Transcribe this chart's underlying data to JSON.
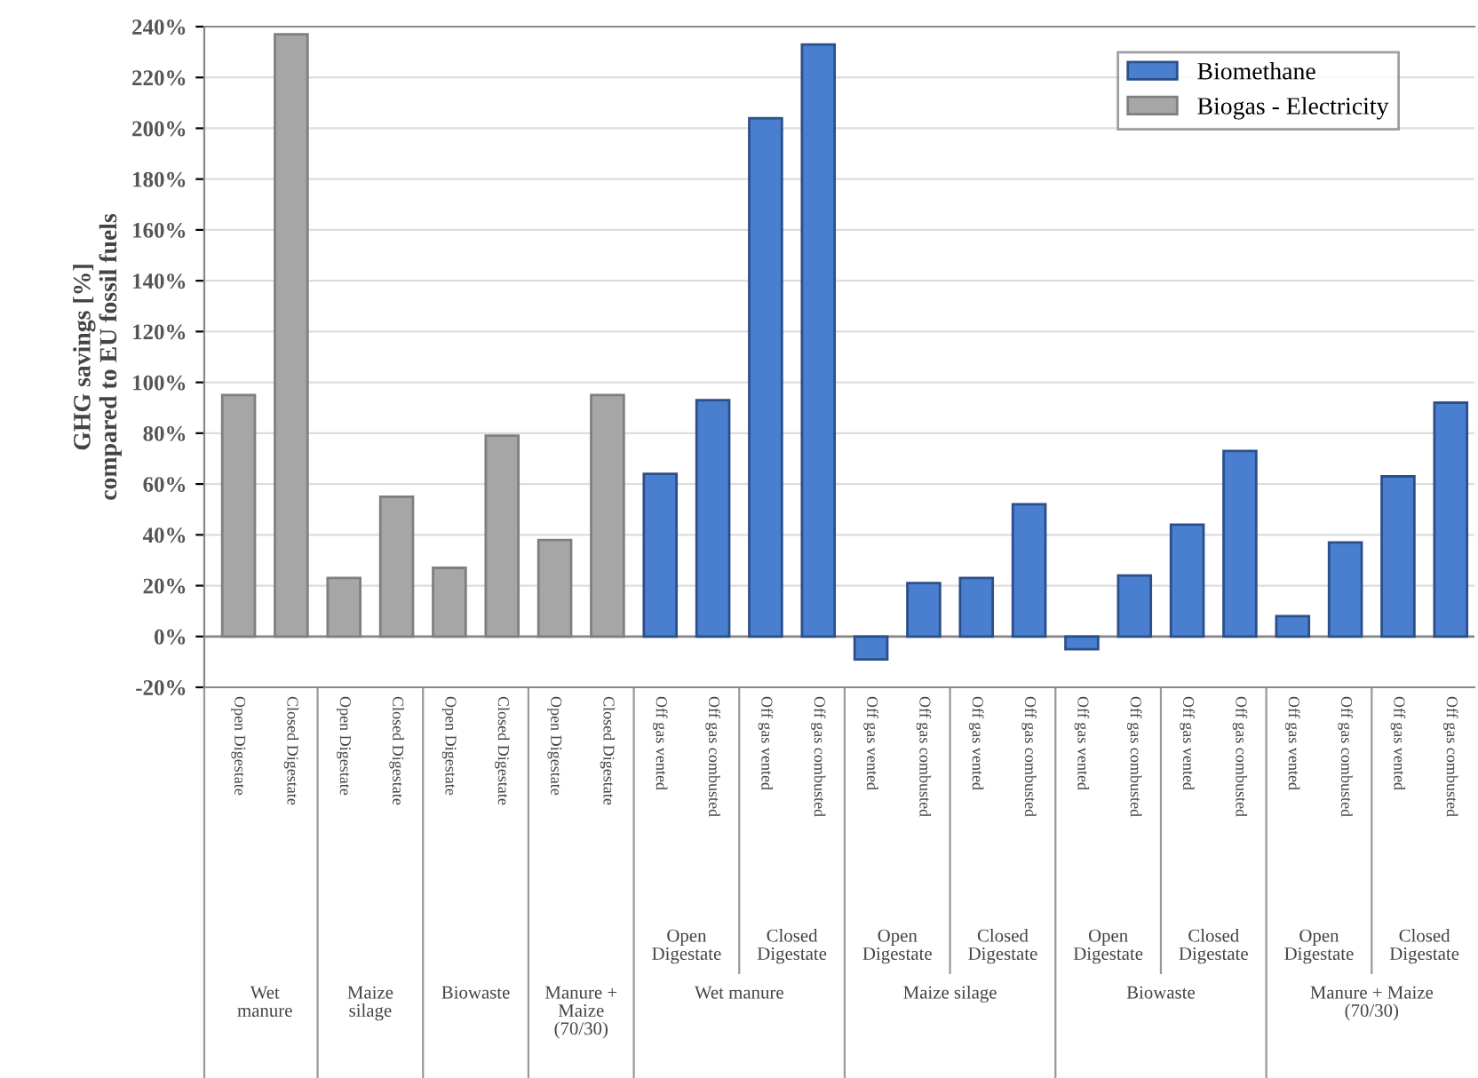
{
  "chart_data": {
    "type": "bar",
    "ylabel": "GHG savings [%]\ncompared to EU fossil fuels",
    "categories": [
      "Open Digestate",
      "Closed Digestate",
      "Open Digestate",
      "Closed Digestate",
      "Open Digestate",
      "Closed Digestate",
      "Open Digestate",
      "Closed Digestate",
      "Off gas vented",
      "Off gas combusted",
      "Off gas vented",
      "Off gas combusted",
      "Off gas vented",
      "Off gas combusted",
      "Off gas vented",
      "Off gas combusted",
      "Off gas vented",
      "Off gas combusted",
      "Off gas vented",
      "Off gas combusted",
      "Off gas vented",
      "Off gas combusted",
      "Off gas vented",
      "Off gas combusted"
    ],
    "series": [
      {
        "name": "Biomethane",
        "color": "#4a7fcf",
        "values": [
          null,
          null,
          null,
          null,
          null,
          null,
          null,
          null,
          64,
          93,
          204,
          233,
          -9,
          21,
          23,
          52,
          -5,
          24,
          44,
          73,
          8,
          37,
          63,
          92
        ]
      },
      {
        "name": "Biogas - Electricity",
        "color": "#a6a6a6",
        "values": [
          95,
          237,
          23,
          55,
          27,
          79,
          38,
          95,
          null,
          null,
          null,
          null,
          null,
          null,
          null,
          null,
          null,
          null,
          null,
          null,
          null,
          null,
          null,
          null
        ]
      }
    ],
    "ylim": [
      -20,
      240
    ],
    "yticks": [
      {
        "value": -20,
        "label": "-20%"
      },
      {
        "value": 0,
        "label": "0%"
      },
      {
        "value": 20,
        "label": "20%"
      },
      {
        "value": 40,
        "label": "40%"
      },
      {
        "value": 60,
        "label": "60%"
      },
      {
        "value": 80,
        "label": "80%"
      },
      {
        "value": 100,
        "label": "100%"
      },
      {
        "value": 120,
        "label": "120%"
      },
      {
        "value": 140,
        "label": "140%"
      },
      {
        "value": 160,
        "label": "160%"
      },
      {
        "value": 180,
        "label": "180%"
      },
      {
        "value": 200,
        "label": "200%"
      },
      {
        "value": 220,
        "label": "220%"
      },
      {
        "value": 240,
        "label": "240%"
      }
    ],
    "grid": "y",
    "legend": "top right",
    "annotations": [
      "Wet\nmanure",
      "Maize\nsilage",
      "Biowaste",
      "Manure +\nMaize\n(70/30)",
      "Open\nDigestate",
      "Closed\nDigestate",
      "Open\nDigestate",
      "Closed\nDigestate",
      "Open\nDigestate",
      "Closed\nDigestate",
      "Open\nDigestate",
      "Closed\nDigestate",
      "Wet manure",
      "Maize silage",
      "Biowaste",
      "Manure + Maize\n(70/30)"
    ]
  }
}
